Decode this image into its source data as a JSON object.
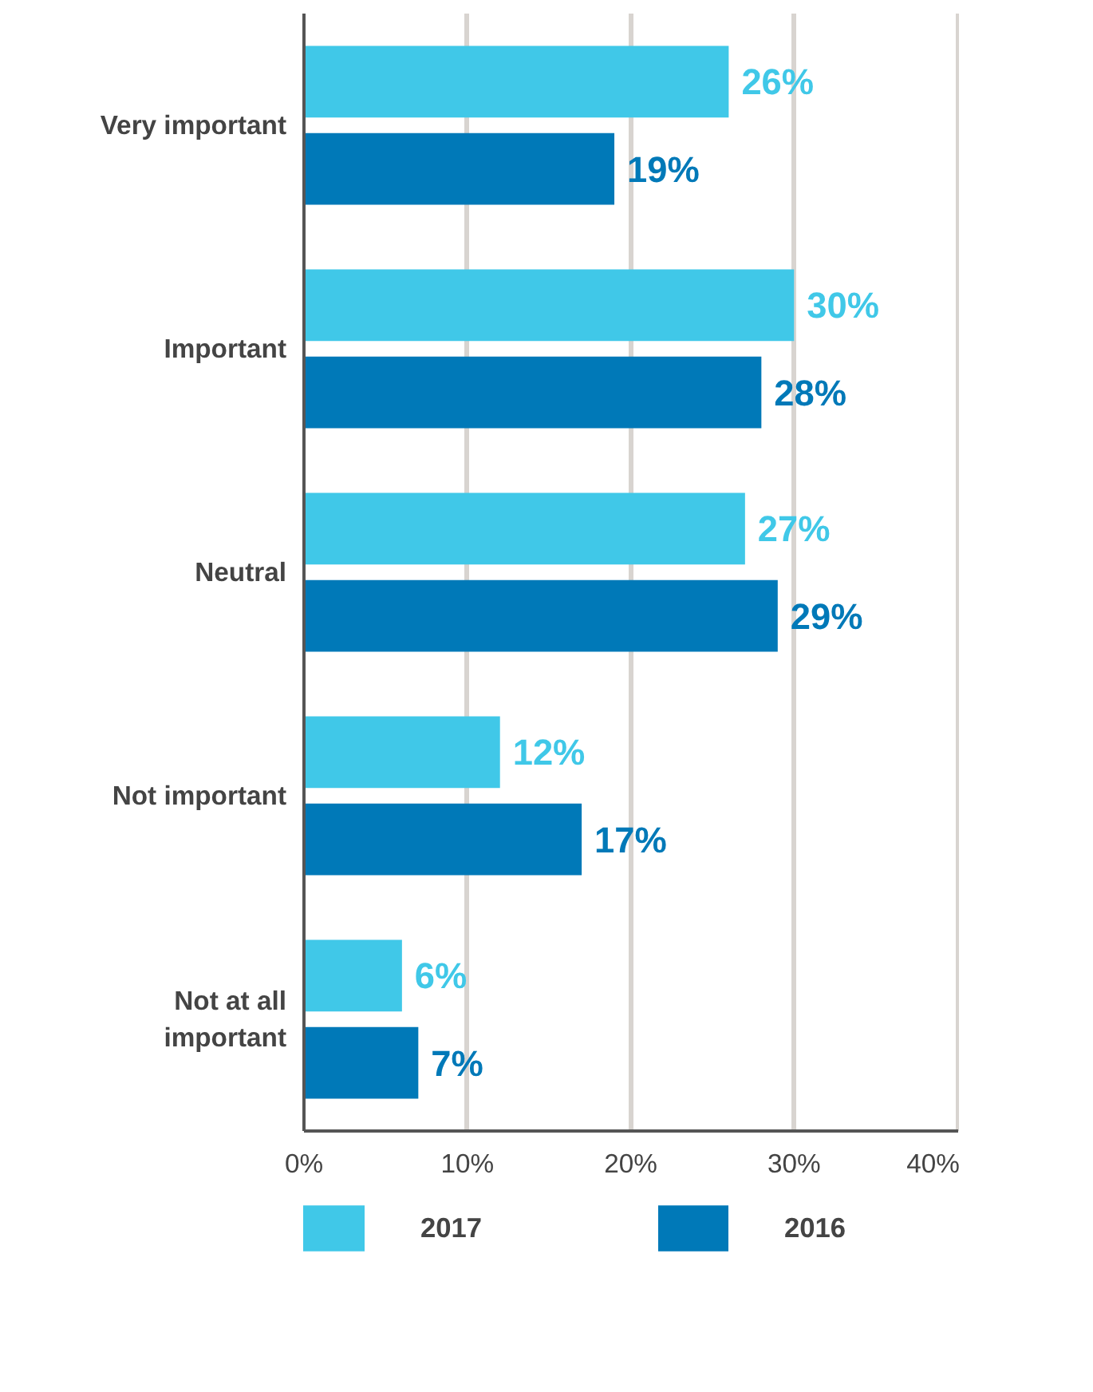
{
  "chart_data": {
    "type": "bar",
    "orientation": "horizontal",
    "categories": [
      "Very important",
      "Important",
      "Neutral",
      "Not important",
      "Not at all important"
    ],
    "series": [
      {
        "name": "2017",
        "color": "#40c8e8",
        "values": [
          26,
          30,
          27,
          12,
          6
        ],
        "value_labels": [
          "26%",
          "30%",
          "27%",
          "12%",
          "6%"
        ]
      },
      {
        "name": "2016",
        "color": "#0079b8",
        "values": [
          19,
          28,
          29,
          17,
          7
        ],
        "value_labels": [
          "19%",
          "28%",
          "29%",
          "17%",
          "7%"
        ]
      }
    ],
    "xlim": [
      0,
      40
    ],
    "xticks": [
      {
        "value": 0,
        "label": "0%"
      },
      {
        "value": 10,
        "label": "10%"
      },
      {
        "value": 20,
        "label": "20%"
      },
      {
        "value": 30,
        "label": "30%"
      },
      {
        "value": 40,
        "label": "40%"
      }
    ],
    "grid": "x",
    "legend": "bottom"
  }
}
